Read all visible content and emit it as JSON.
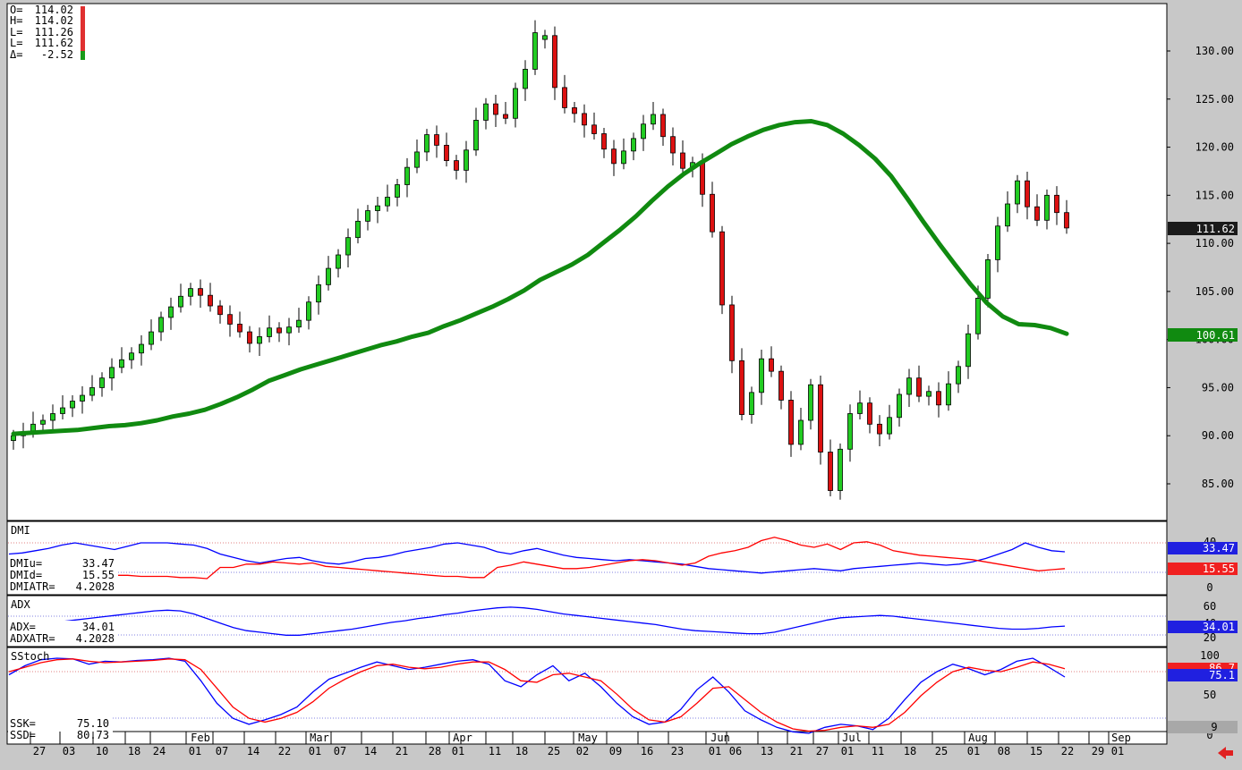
{
  "chart_data": [
    {
      "type": "candlestick",
      "panel": "price",
      "ohlc_box": {
        "O": "114.02",
        "H": "114.02",
        "L": "111.26",
        "L2": "111.62",
        "D": "-2.52"
      },
      "ohlc_labels": [
        "O=",
        "H=",
        "L=",
        "L=",
        "Δ="
      ],
      "ylim": [
        80,
        135
      ],
      "yticks": [
        130,
        125,
        120,
        115,
        110,
        105,
        100,
        95,
        90,
        85
      ],
      "ytick_labels": [
        "130.00",
        "125.00",
        "120.00",
        "115.00",
        "110.00",
        "105.00",
        "100.00",
        "95.00",
        "90.00",
        "85.00"
      ],
      "last_price_label": "111.62",
      "ma_label": "100.61",
      "x_labels": [
        "27",
        "03",
        "10",
        "18",
        "24",
        "01",
        "07",
        "14",
        "22",
        "01",
        "07",
        "14",
        "21",
        "28",
        "01",
        "11",
        "18",
        "25",
        "02",
        "09",
        "16",
        "23",
        "01",
        "06",
        "13",
        "21",
        "27",
        "01",
        "11",
        "18",
        "25",
        "01",
        "08",
        "15",
        "22",
        "29",
        "01"
      ],
      "month_labels": [
        "Feb",
        "Mar",
        "Apr",
        "May",
        "Jun",
        "Jul",
        "Aug",
        "Sep"
      ],
      "moving_average": [
        90.2,
        90.3,
        90.4,
        90.5,
        90.6,
        90.8,
        91.0,
        91.1,
        91.3,
        91.6,
        92.0,
        92.3,
        92.7,
        93.3,
        94.0,
        94.8,
        95.7,
        96.3,
        96.9,
        97.4,
        97.9,
        98.4,
        98.9,
        99.4,
        99.8,
        100.3,
        100.7,
        101.4,
        102.0,
        102.7,
        103.4,
        104.2,
        105.1,
        106.2,
        107.0,
        107.8,
        108.8,
        110.1,
        111.4,
        112.8,
        114.4,
        115.9,
        117.2,
        118.3,
        119.3,
        120.3,
        121.1,
        121.8,
        122.3,
        122.6,
        122.7,
        122.3,
        121.4,
        120.2,
        118.8,
        117.0,
        114.7,
        112.3,
        110.0,
        107.8,
        105.7,
        103.8,
        102.4,
        101.6,
        101.5,
        101.2,
        100.6
      ],
      "closes": [
        90.0,
        90.4,
        91.2,
        91.6,
        92.3,
        92.9,
        93.6,
        94.2,
        95.0,
        96.0,
        97.1,
        97.9,
        98.6,
        99.5,
        100.8,
        102.3,
        103.4,
        104.5,
        105.3,
        104.6,
        103.5,
        102.6,
        101.6,
        100.8,
        99.6,
        100.3,
        101.2,
        100.7,
        101.3,
        102.0,
        103.9,
        105.7,
        107.4,
        108.8,
        110.6,
        112.3,
        113.4,
        113.9,
        114.8,
        116.1,
        117.9,
        119.5,
        121.3,
        120.2,
        118.6,
        117.6,
        119.7,
        122.8,
        124.5,
        123.4,
        123.0,
        126.1,
        128.1,
        131.9,
        131.6,
        126.2,
        124.1,
        123.5,
        122.3,
        121.4,
        119.8,
        118.3,
        119.6,
        120.9,
        122.4,
        123.4,
        121.1,
        119.4,
        117.8,
        118.4,
        115.1,
        111.2,
        103.6,
        97.8,
        92.2,
        94.5,
        98.0,
        96.7,
        93.7,
        89.1,
        91.6,
        95.3,
        88.3,
        84.3,
        88.6,
        92.3,
        93.4,
        91.2,
        90.2,
        91.9,
        94.3,
        96.0,
        94.1,
        94.6,
        93.2,
        95.4,
        97.2,
        100.6,
        104.3,
        108.3,
        111.8,
        114.1,
        116.5,
        113.8,
        112.4,
        115.0,
        113.2,
        111.6
      ]
    },
    {
      "type": "line",
      "panel": "DMI",
      "title": "DMI",
      "info": [
        {
          "label": "DMIu=",
          "value": "33.47"
        },
        {
          "label": "DMId=",
          "value": "15.55"
        },
        {
          "label": "DMIATR=",
          "value": "4.2028"
        }
      ],
      "yticks": [
        40,
        0
      ],
      "ytick_labels": [
        "40",
        "0"
      ],
      "tag_up": "33.47",
      "tag_dn": "15.55",
      "series": [
        {
          "color": "#0000ff",
          "values": [
            30,
            31,
            33,
            35,
            38,
            40,
            38,
            36,
            34,
            37,
            40,
            40,
            40,
            39,
            38,
            35,
            30,
            27,
            24,
            22,
            24,
            26,
            27,
            24,
            22,
            21,
            23,
            26,
            27,
            29,
            32,
            34,
            36,
            39,
            40,
            38,
            36,
            32,
            30,
            33,
            35,
            32,
            29,
            27,
            26,
            25,
            24,
            25,
            24,
            23,
            22,
            21,
            19,
            17,
            16,
            15,
            14,
            13,
            14,
            15,
            16,
            17,
            16,
            15,
            17,
            18,
            19,
            20,
            21,
            22,
            21,
            20,
            21,
            23,
            26,
            30,
            34,
            40,
            36,
            33,
            32
          ]
        },
        {
          "color": "#ff0000",
          "values": [
            18,
            17,
            16,
            15,
            14,
            13,
            12,
            12,
            11,
            11,
            10,
            10,
            10,
            9,
            9,
            8,
            18,
            18,
            21,
            21,
            23,
            22,
            21,
            22,
            19,
            18,
            17,
            16,
            15,
            14,
            13,
            12,
            11,
            10,
            10,
            9,
            9,
            18,
            20,
            23,
            21,
            19,
            17,
            17,
            18,
            20,
            22,
            24,
            25,
            24,
            22,
            20,
            22,
            28,
            31,
            33,
            36,
            42,
            45,
            42,
            38,
            36,
            39,
            34,
            40,
            41,
            38,
            33,
            31,
            29,
            28,
            27,
            26,
            25,
            23,
            21,
            19,
            17,
            15,
            16,
            17
          ]
        }
      ]
    },
    {
      "type": "line",
      "panel": "ADX",
      "title": "ADX",
      "info": [
        {
          "label": "ADX=",
          "value": "34.01"
        },
        {
          "label": "ADXATR=",
          "value": "4.2028"
        }
      ],
      "yticks": [
        60,
        40,
        20
      ],
      "ytick_labels": [
        "60",
        "40",
        "20"
      ],
      "tag": "34.01",
      "series": [
        {
          "color": "#0000ff",
          "values": [
            32,
            34,
            36,
            38,
            40,
            42,
            44,
            46,
            48,
            50,
            52,
            54,
            55,
            54,
            50,
            44,
            38,
            32,
            28,
            26,
            24,
            22,
            22,
            24,
            26,
            28,
            30,
            33,
            36,
            39,
            41,
            44,
            46,
            49,
            51,
            54,
            56,
            58,
            59,
            58,
            56,
            53,
            50,
            48,
            46,
            44,
            42,
            40,
            38,
            36,
            33,
            30,
            28,
            27,
            26,
            25,
            24,
            24,
            26,
            30,
            34,
            38,
            42,
            45,
            46,
            47,
            48,
            47,
            45,
            43,
            41,
            39,
            37,
            35,
            33,
            31,
            30,
            30,
            31,
            33,
            34
          ]
        }
      ]
    },
    {
      "type": "line",
      "panel": "SStoch",
      "title": "SStoch",
      "info": [
        {
          "label": "SSK=",
          "value": "75.10"
        },
        {
          "label": "SSD=",
          "value": "80.73"
        }
      ],
      "yticks": [
        100,
        50,
        0
      ],
      "ytick_labels": [
        "100",
        "50",
        "0"
      ],
      "tag_red": "86.7",
      "tag_blue": "75.1",
      "tag_gray": "9",
      "series": [
        {
          "color": "#0000ff",
          "values": [
            78,
            90,
            98,
            100,
            99,
            92,
            96,
            95,
            97,
            98,
            100,
            96,
            70,
            40,
            20,
            12,
            18,
            25,
            35,
            55,
            72,
            80,
            88,
            95,
            90,
            85,
            88,
            92,
            96,
            98,
            92,
            70,
            62,
            78,
            90,
            70,
            80,
            62,
            40,
            22,
            12,
            15,
            32,
            58,
            75,
            55,
            30,
            18,
            8,
            2,
            0,
            8,
            12,
            10,
            5,
            20,
            45,
            68,
            82,
            92,
            86,
            78,
            85,
            96,
            100,
            88,
            75
          ]
        },
        {
          "color": "#ff0000",
          "values": [
            82,
            88,
            94,
            98,
            99,
            96,
            94,
            95,
            96,
            97,
            99,
            98,
            85,
            60,
            35,
            20,
            15,
            20,
            28,
            42,
            60,
            72,
            82,
            90,
            92,
            88,
            86,
            88,
            92,
            95,
            95,
            85,
            70,
            68,
            78,
            80,
            75,
            70,
            52,
            32,
            18,
            15,
            22,
            40,
            60,
            62,
            45,
            28,
            15,
            6,
            3,
            4,
            8,
            10,
            8,
            12,
            28,
            50,
            68,
            82,
            88,
            84,
            82,
            88,
            95,
            92,
            86
          ]
        }
      ]
    }
  ]
}
